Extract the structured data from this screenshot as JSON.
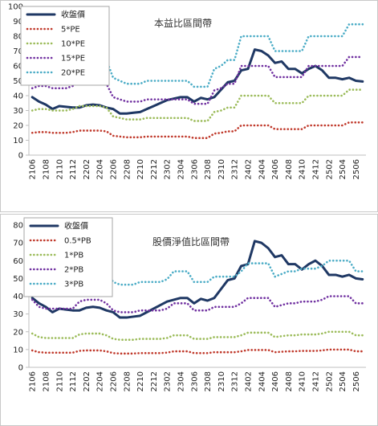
{
  "chart_data": [
    {
      "type": "line",
      "annotation": "本益比區間帶",
      "legend": "upper left",
      "grid": false,
      "ylim": [
        0,
        100
      ],
      "yticks": [
        0,
        10,
        20,
        30,
        40,
        50,
        60,
        70,
        80,
        90,
        100
      ],
      "categories": [
        "2106",
        null,
        "2108",
        null,
        "2110",
        null,
        "2112",
        null,
        "2202",
        null,
        "2204",
        null,
        "2206",
        null,
        "2208",
        null,
        "2210",
        null,
        "2212",
        null,
        "2302",
        null,
        "2304",
        null,
        "2306",
        null,
        "2308",
        null,
        "2310",
        null,
        "2312",
        null,
        "2402",
        null,
        "2404",
        null,
        "2406",
        null,
        "2408",
        null,
        "2410",
        null,
        "2412",
        null,
        "2502",
        null,
        "2504",
        null,
        "2506",
        null
      ],
      "series": [
        {
          "name": "收盤價",
          "color": "#1f3864",
          "style": "solid",
          "values": [
            39,
            36,
            34,
            31,
            33,
            32.5,
            32,
            32,
            33.5,
            34,
            33.5,
            32,
            31,
            28,
            28,
            28.5,
            29,
            31,
            33,
            35,
            37,
            38,
            39,
            39,
            36,
            38.5,
            37.5,
            39,
            44,
            49,
            50,
            57,
            58,
            71,
            70,
            67,
            62,
            63,
            58,
            58,
            55,
            58,
            60,
            57,
            52,
            52,
            51,
            52,
            50,
            49.5
          ]
        },
        {
          "name": "5*PE",
          "color": "#c0392b",
          "style": "dotted",
          "values": [
            15,
            15.5,
            15.5,
            15,
            15,
            15,
            15.5,
            16.5,
            16.5,
            16.5,
            16.5,
            16,
            13,
            12.5,
            12,
            12,
            12,
            12.5,
            12.5,
            12.5,
            12.5,
            12.5,
            12.5,
            12.5,
            11.5,
            11.5,
            11.5,
            14.5,
            15,
            16,
            16,
            20,
            20,
            20,
            20,
            20,
            17.5,
            17.5,
            17.5,
            17.5,
            17.5,
            20,
            20,
            20,
            20,
            20,
            20,
            22,
            22,
            22
          ]
        },
        {
          "name": "10*PE",
          "color": "#9bbb59",
          "style": "dotted",
          "values": [
            30,
            31,
            31,
            30,
            30,
            30,
            31,
            33,
            33,
            33,
            33,
            32,
            26,
            25,
            24,
            24,
            24,
            25,
            25,
            25,
            25,
            25,
            25,
            25,
            23,
            23,
            23,
            29,
            30,
            32,
            32,
            40,
            40,
            40,
            40,
            40,
            35,
            35,
            35,
            35,
            35,
            40,
            40,
            40,
            40,
            40,
            40,
            44,
            44,
            44
          ]
        },
        {
          "name": "15*PE",
          "color": "#7030a0",
          "style": "dotted",
          "values": [
            45,
            46.5,
            46.5,
            45,
            45,
            45,
            46.5,
            49.5,
            49.5,
            49.5,
            49.5,
            48,
            39,
            37.5,
            36,
            36,
            36,
            37.5,
            37.5,
            37.5,
            37.5,
            37.5,
            37.5,
            37.5,
            34.5,
            34.5,
            34.5,
            43.5,
            45,
            48,
            48,
            60,
            60,
            60,
            60,
            60,
            52.5,
            52.5,
            52.5,
            52.5,
            52.5,
            60,
            60,
            60,
            60,
            60,
            60,
            66,
            66,
            66
          ]
        },
        {
          "name": "20*PE",
          "color": "#4bacc6",
          "style": "dotted",
          "values": [
            60,
            62,
            62,
            60,
            60,
            60,
            62,
            66,
            66,
            66,
            66,
            64,
            52,
            50,
            48,
            48,
            48,
            50,
            50,
            50,
            50,
            50,
            50,
            50,
            46,
            46,
            46,
            58,
            60,
            64,
            64,
            80,
            80,
            80,
            80,
            80,
            70,
            70,
            70,
            70,
            70,
            80,
            80,
            80,
            80,
            80,
            80,
            88,
            88,
            88
          ]
        }
      ]
    },
    {
      "type": "line",
      "annotation": "股價淨值比區間帶",
      "legend": "upper left",
      "grid": false,
      "ylim": [
        0,
        80
      ],
      "yticks": [
        0,
        10,
        20,
        30,
        40,
        50,
        60,
        70,
        80
      ],
      "categories": [
        "2106",
        null,
        "2108",
        null,
        "2110",
        null,
        "2112",
        null,
        "2202",
        null,
        "2204",
        null,
        "2206",
        null,
        "2208",
        null,
        "2210",
        null,
        "2212",
        null,
        "2302",
        null,
        "2304",
        null,
        "2306",
        null,
        "2308",
        null,
        "2310",
        null,
        "2312",
        null,
        "2402",
        null,
        "2404",
        null,
        "2406",
        null,
        "2408",
        null,
        "2410",
        null,
        "2412",
        null,
        "2502",
        null,
        "2504",
        null,
        "2506",
        null
      ],
      "series": [
        {
          "name": "收盤價",
          "color": "#1f3864",
          "style": "solid",
          "values": [
            39,
            36,
            34,
            31,
            33,
            32.5,
            32,
            32,
            33.5,
            34,
            33.5,
            32,
            31,
            28,
            28,
            28.5,
            29,
            31,
            33,
            35,
            37,
            38,
            39,
            39,
            36,
            38.5,
            37.5,
            39,
            44,
            49,
            50,
            57,
            58,
            71,
            70,
            67,
            62,
            63,
            58,
            58,
            55,
            58,
            60,
            57,
            52,
            52,
            51,
            52,
            50,
            49.5
          ]
        },
        {
          "name": "0.5*PB",
          "color": "#c0392b",
          "style": "dotted",
          "values": [
            9.5,
            8.5,
            8.25,
            8.25,
            8.25,
            8.25,
            8.25,
            9.25,
            9.5,
            9.5,
            9.5,
            9,
            8,
            7.75,
            7.75,
            7.75,
            8,
            8,
            8,
            8,
            8.25,
            9,
            9,
            9,
            8,
            8,
            8,
            8.5,
            8.5,
            8.5,
            8.5,
            9,
            9.75,
            9.75,
            9.75,
            9.75,
            8.5,
            8.75,
            9,
            9,
            9.25,
            9.25,
            9.25,
            9.5,
            10,
            10,
            10,
            10,
            9,
            9
          ]
        },
        {
          "name": "1*PB",
          "color": "#9bbb59",
          "style": "dotted",
          "values": [
            19,
            17,
            16.5,
            16.5,
            16.5,
            16.5,
            16.5,
            18.5,
            19,
            19,
            19,
            18,
            16,
            15.5,
            15.5,
            15.5,
            16,
            16,
            16,
            16,
            16.5,
            18,
            18,
            18,
            16,
            16,
            16,
            17,
            17,
            17,
            17,
            18,
            19.5,
            19.5,
            19.5,
            19.5,
            17,
            17.5,
            18,
            18,
            18.5,
            18.5,
            18.5,
            19,
            20,
            20,
            20,
            20,
            18,
            18
          ]
        },
        {
          "name": "2*PB",
          "color": "#7030a0",
          "style": "dotted",
          "values": [
            38,
            34,
            33,
            33,
            33,
            33,
            33,
            37,
            38,
            38,
            38,
            36,
            32,
            31,
            31,
            31,
            32,
            32,
            32,
            32,
            33,
            36,
            36,
            36,
            32,
            32,
            32,
            34,
            34,
            34,
            34,
            36,
            39,
            39,
            39,
            39,
            34,
            35,
            36,
            36,
            37,
            37,
            37,
            38,
            40,
            40,
            40,
            40,
            36,
            36
          ]
        },
        {
          "name": "3*PB",
          "color": "#4bacc6",
          "style": "dotted",
          "values": [
            57,
            51,
            49.5,
            49.5,
            49.5,
            49.5,
            49.5,
            55.5,
            57,
            57,
            57,
            54,
            48,
            46.5,
            46.5,
            46.5,
            48,
            48,
            48,
            48,
            49.5,
            54,
            54,
            54,
            48,
            48,
            48,
            51,
            51,
            51,
            51,
            54,
            58.5,
            58.5,
            58.5,
            58.5,
            51,
            52.5,
            54,
            54,
            55.5,
            55.5,
            55.5,
            57,
            60,
            60,
            60,
            60,
            54,
            54
          ]
        }
      ]
    }
  ]
}
